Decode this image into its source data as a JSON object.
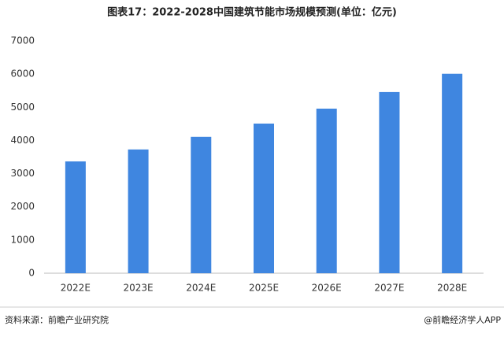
{
  "chart_data": {
    "type": "bar",
    "title": "图表17：2022-2028中国建筑节能市场规模预测(单位：亿元)",
    "categories": [
      "2022E",
      "2023E",
      "2024E",
      "2025E",
      "2026E",
      "2027E",
      "2028E"
    ],
    "values": [
      3370,
      3730,
      4110,
      4510,
      4960,
      5460,
      6010
    ],
    "color": "#3f86e0",
    "ylim": [
      0,
      7000
    ],
    "yticks": [
      0,
      1000,
      2000,
      3000,
      4000,
      5000,
      6000,
      7000
    ],
    "grid": false,
    "source": "资料来源：前瞻产业研究院",
    "credit": "@前瞻经济学人APP"
  }
}
